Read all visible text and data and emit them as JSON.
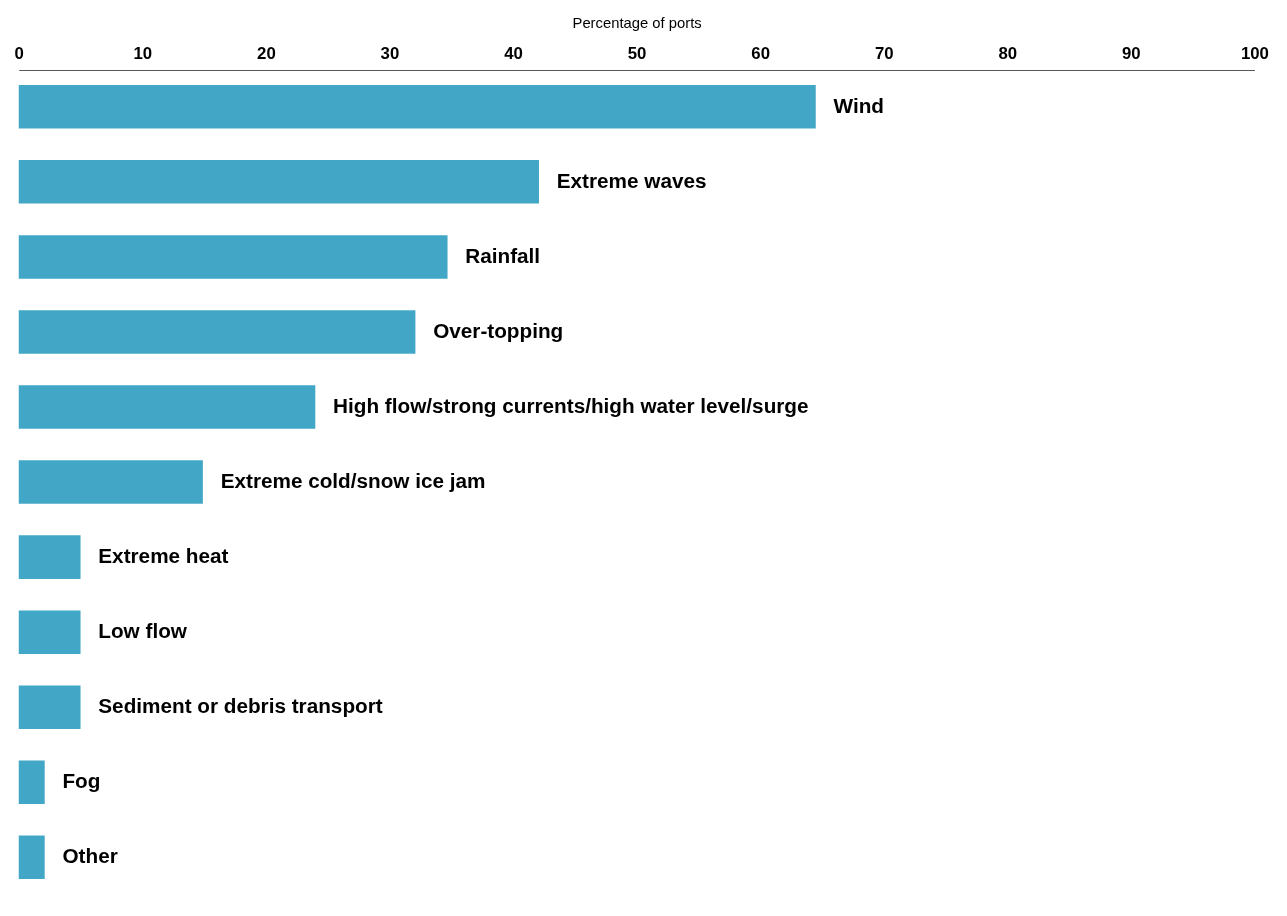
{
  "chart_data": {
    "type": "bar",
    "orientation": "horizontal",
    "xlabel": "Percentage of ports",
    "categories": [
      "Wind",
      "Extreme waves",
      "Rainfall",
      "Over-topping",
      "High flow/strong currents/high water level/surge",
      "Extreme cold/snow ice jam",
      "Extreme heat",
      "Low flow",
      "Sediment or debris transport",
      "Fog",
      "Other"
    ],
    "values": [
      64.5,
      42.1,
      34.7,
      32.1,
      24.0,
      14.9,
      5.0,
      5.0,
      5.0,
      2.1,
      2.1
    ],
    "color": "#42a7c6",
    "xlim": [
      0,
      100
    ],
    "xticks": [
      0,
      10,
      20,
      30,
      40,
      50,
      60,
      70,
      80,
      90,
      100
    ]
  }
}
